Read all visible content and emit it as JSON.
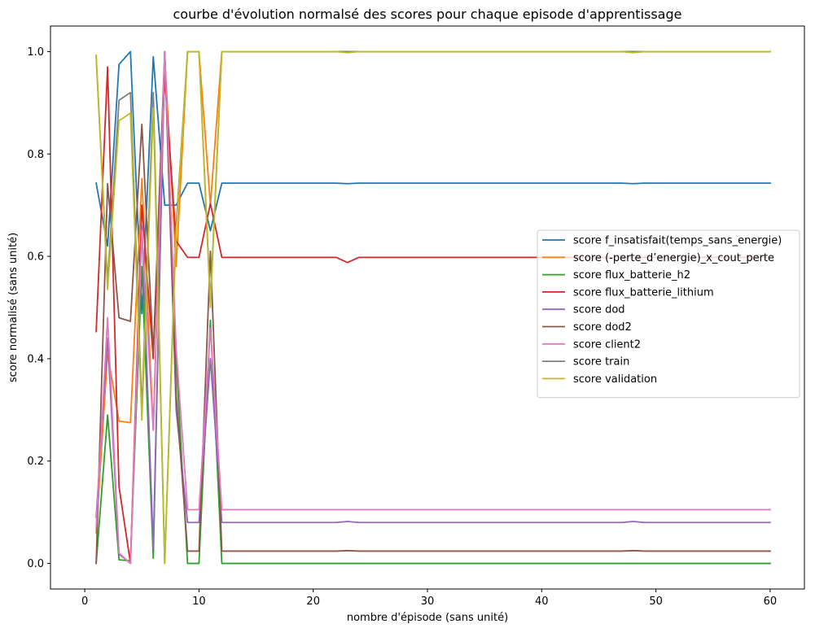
{
  "chart_data": {
    "type": "line",
    "title": "courbe d'évolution normalsé des scores pour chaque episode d'apprentissage",
    "xlabel": "nombre d'épisode (sans unité)",
    "ylabel": "score normalisé (sans unité)",
    "xlim": [
      -3,
      63
    ],
    "ylim": [
      -0.05,
      1.05
    ],
    "xticks": [
      0,
      10,
      20,
      30,
      40,
      50,
      60
    ],
    "xtick_labels": [
      "0",
      "10",
      "20",
      "30",
      "40",
      "50",
      "60"
    ],
    "yticks": [
      0.0,
      0.2,
      0.4,
      0.6,
      0.8,
      1.0
    ],
    "ytick_labels": [
      "0.0",
      "0.2",
      "0.4",
      "0.6",
      "0.8",
      "1.0"
    ],
    "grid": false,
    "legend_position": "center-right",
    "series": [
      {
        "name": "score f_insatisfait(temps_sans_energie)",
        "color": "#1f77b4",
        "x": [
          1,
          2,
          3,
          4,
          5,
          6,
          7,
          8,
          9,
          10,
          11,
          12,
          22,
          23,
          24,
          47,
          48,
          49,
          60
        ],
        "y": [
          0.743,
          0.62,
          0.975,
          1.0,
          0.488,
          0.99,
          0.7,
          0.7,
          0.743,
          0.743,
          0.65,
          0.743,
          0.743,
          0.742,
          0.743,
          0.743,
          0.742,
          0.743,
          0.743
        ]
      },
      {
        "name": "score (-perte_d’energie)_x_cout_perte",
        "color": "#ff7f0e",
        "x": [
          1,
          2,
          3,
          4,
          5,
          6,
          7,
          8,
          9,
          10,
          11,
          12,
          60
        ],
        "y": [
          0.06,
          0.41,
          0.278,
          0.275,
          0.752,
          0.262,
          0.99,
          0.58,
          1.0,
          1.0,
          0.7,
          1.0,
          1.0
        ]
      },
      {
        "name": "score flux_batterie_h2",
        "color": "#2ca02c",
        "x": [
          1,
          2,
          3,
          4,
          5,
          6,
          7,
          8,
          9,
          10,
          11,
          12,
          60
        ],
        "y": [
          0.0,
          0.29,
          0.007,
          0.005,
          0.58,
          0.01,
          1.0,
          0.4,
          0.0,
          0.0,
          0.475,
          0.0,
          0.0
        ]
      },
      {
        "name": "score flux_batterie_lithium",
        "color": "#d62728",
        "x": [
          1,
          2,
          3,
          4,
          5,
          6,
          7,
          8,
          9,
          10,
          11,
          12,
          22,
          23,
          24,
          60
        ],
        "y": [
          0.453,
          0.97,
          0.15,
          0.0,
          0.7,
          0.4,
          0.95,
          0.63,
          0.598,
          0.598,
          0.703,
          0.598,
          0.598,
          0.588,
          0.598,
          0.598
        ]
      },
      {
        "name": "score dod",
        "color": "#9467bd",
        "x": [
          1,
          2,
          3,
          4,
          5,
          6,
          7,
          8,
          9,
          10,
          11,
          12,
          22,
          23,
          24,
          47,
          48,
          49,
          60
        ],
        "y": [
          0.09,
          0.44,
          0.018,
          0.0,
          0.66,
          0.03,
          1.0,
          0.3,
          0.08,
          0.08,
          0.4,
          0.08,
          0.08,
          0.082,
          0.08,
          0.08,
          0.082,
          0.08,
          0.08
        ]
      },
      {
        "name": "score dod2",
        "color": "#8c564b",
        "x": [
          1,
          2,
          3,
          4,
          5,
          6,
          7,
          8,
          9,
          10,
          11,
          12,
          22,
          23,
          24,
          47,
          48,
          49,
          60
        ],
        "y": [
          0.0,
          0.742,
          0.48,
          0.473,
          0.858,
          0.41,
          1.0,
          0.33,
          0.024,
          0.024,
          0.61,
          0.024,
          0.024,
          0.025,
          0.024,
          0.024,
          0.025,
          0.024,
          0.024
        ]
      },
      {
        "name": "score client2",
        "color": "#e377c2",
        "x": [
          1,
          2,
          3,
          4,
          5,
          6,
          7,
          8,
          9,
          10,
          11,
          12,
          60
        ],
        "y": [
          0.07,
          0.48,
          0.02,
          0.0,
          0.65,
          0.26,
          1.0,
          0.42,
          0.105,
          0.105,
          0.46,
          0.105,
          0.105
        ]
      },
      {
        "name": "score train",
        "color": "#7f7f7f",
        "x": [
          1,
          2,
          3,
          4,
          5,
          6,
          7,
          8,
          9,
          10,
          11,
          12,
          60
        ],
        "y": [
          0.99,
          0.55,
          0.905,
          0.92,
          0.3,
          0.92,
          0.0,
          0.66,
          1.0,
          1.0,
          0.51,
          1.0,
          1.0
        ]
      },
      {
        "name": "score validation",
        "color": "#bcbd22",
        "x": [
          1,
          2,
          3,
          4,
          5,
          6,
          7,
          8,
          9,
          10,
          11,
          12,
          22,
          23,
          24,
          47,
          48,
          49,
          60
        ],
        "y": [
          0.993,
          0.535,
          0.865,
          0.88,
          0.28,
          0.89,
          0.0,
          0.65,
          1.0,
          1.0,
          0.5,
          1.0,
          1.0,
          0.998,
          1.0,
          1.0,
          0.998,
          1.0,
          1.0
        ]
      }
    ]
  }
}
